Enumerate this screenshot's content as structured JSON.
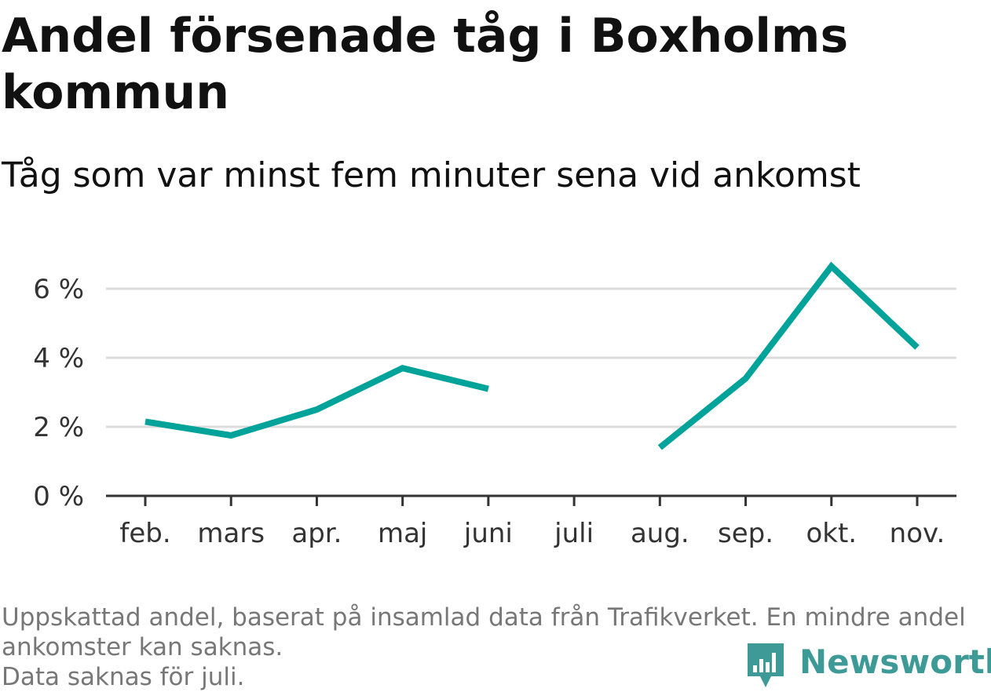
{
  "title": "Andel försenade tåg i Boxholms kommun",
  "subtitle": "Tåg som var minst fem minuter sena vid ankomst",
  "notes": [
    "Uppskattad andel, baserat på insamlad data från Trafikverket. En mindre andel",
    "ankomster kan saknas.",
    "Data saknas för juli."
  ],
  "logo": {
    "text": "Newsworthy",
    "icon": "bar-chart-pin-icon",
    "color": "#3d9a96"
  },
  "chart_data": {
    "type": "line",
    "categories": [
      "feb.",
      "mars",
      "apr.",
      "maj",
      "juni",
      "juli",
      "aug.",
      "sep.",
      "okt.",
      "nov."
    ],
    "series": [
      {
        "values": [
          2.15,
          1.75,
          2.5,
          3.7,
          3.1,
          null,
          1.4,
          3.4,
          6.65,
          4.3
        ],
        "color": "#00a39a"
      }
    ],
    "yticks": [
      0,
      2,
      4,
      6
    ],
    "ytick_labels": [
      "0 %",
      "2 %",
      "4 %",
      "6 %"
    ],
    "ylim": [
      0,
      7
    ],
    "grid": true,
    "xlabel": "",
    "ylabel": ""
  }
}
